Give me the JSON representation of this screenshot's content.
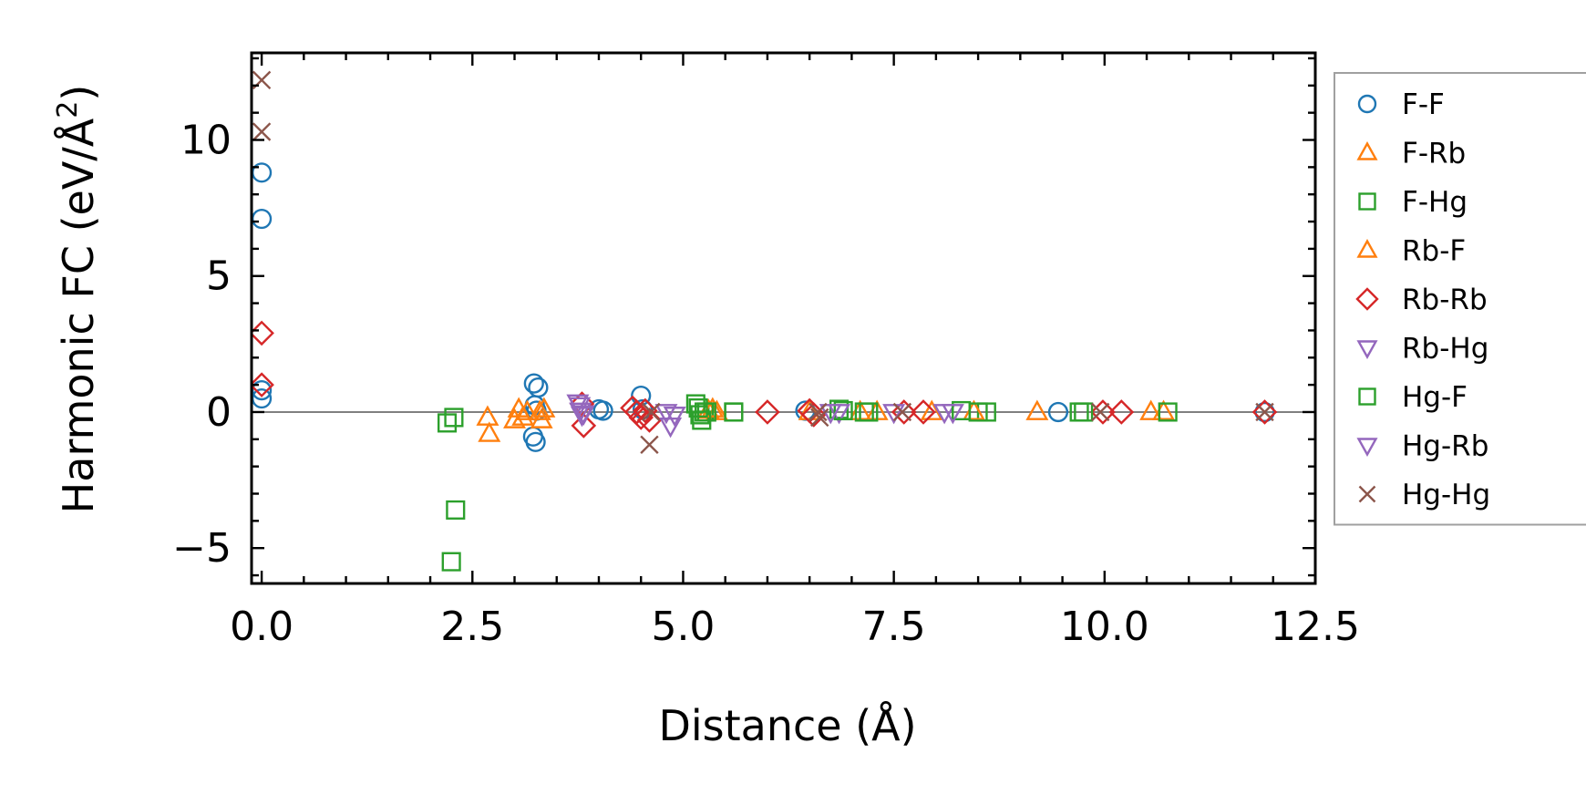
{
  "chart_data": {
    "type": "scatter",
    "title": "",
    "xlabel": "Distance (Å)",
    "ylabel_main": "Harmonic FC (eV/Å",
    "ylabel_sup": "2",
    "ylabel_close": ")",
    "xlim": [
      -0.12,
      12.5
    ],
    "ylim": [
      -6.3,
      13.2
    ],
    "xticks": [
      0,
      2.5,
      5,
      7.5,
      10,
      12.5
    ],
    "xtick_labels": [
      "0.0",
      "2.5",
      "5.0",
      "7.5",
      "10.0",
      "12.5"
    ],
    "yticks": [
      -5,
      0,
      5,
      10
    ],
    "ytick_labels": [
      "−5",
      "0",
      "5",
      "10"
    ],
    "zero_line": true,
    "grid": false,
    "legend_position": "outside-right",
    "series": [
      {
        "name": "F-F",
        "marker": "circle",
        "color": "#1f77b4",
        "points": [
          [
            0,
            8.8
          ],
          [
            0,
            7.1
          ],
          [
            0,
            0.8
          ],
          [
            0,
            0.5
          ],
          [
            3.23,
            1.05
          ],
          [
            3.28,
            0.9
          ],
          [
            3.24,
            0.25
          ],
          [
            3.26,
            0.05
          ],
          [
            3.22,
            -0.9
          ],
          [
            3.25,
            -1.1
          ],
          [
            4.0,
            0.1
          ],
          [
            4.05,
            0.05
          ],
          [
            4.5,
            0.6
          ],
          [
            4.52,
            0.1
          ],
          [
            6.45,
            0.05
          ],
          [
            9.45,
            0.0
          ],
          [
            11.9,
            0.0
          ]
        ]
      },
      {
        "name": "F-Rb",
        "marker": "triangle-up",
        "color": "#ff7f0e",
        "points": [
          [
            2.68,
            -0.2
          ],
          [
            2.7,
            -0.8
          ],
          [
            3.0,
            -0.3
          ],
          [
            3.05,
            0.1
          ],
          [
            3.3,
            0.0
          ],
          [
            3.32,
            -0.3
          ],
          [
            3.35,
            0.1
          ],
          [
            5.3,
            0.05
          ],
          [
            5.4,
            0.0
          ],
          [
            7.1,
            0.0
          ],
          [
            7.3,
            0.0
          ],
          [
            7.95,
            0.0
          ],
          [
            9.2,
            0.0
          ],
          [
            10.55,
            0.0
          ]
        ]
      },
      {
        "name": "F-Hg",
        "marker": "square",
        "color": "#2ca02c",
        "points": [
          [
            2.2,
            -0.4
          ],
          [
            2.28,
            -0.2
          ],
          [
            2.3,
            -3.6
          ],
          [
            2.25,
            -5.5
          ],
          [
            5.15,
            0.3
          ],
          [
            5.2,
            -0.1
          ],
          [
            5.25,
            0.0
          ],
          [
            5.6,
            0.0
          ],
          [
            6.85,
            0.1
          ],
          [
            7.15,
            0.0
          ],
          [
            8.6,
            0.0
          ],
          [
            9.7,
            0.0
          ]
        ]
      },
      {
        "name": "Rb-F",
        "marker": "triangle-up",
        "color": "#ff7f0e",
        "points": [
          [
            3.1,
            -0.2
          ],
          [
            3.15,
            0.0
          ],
          [
            5.35,
            0.1
          ],
          [
            6.5,
            0.0
          ],
          [
            8.45,
            0.0
          ],
          [
            10.7,
            0.0
          ]
        ]
      },
      {
        "name": "Rb-Rb",
        "marker": "diamond",
        "color": "#d62728",
        "points": [
          [
            0,
            2.9
          ],
          [
            0,
            1.0
          ],
          [
            3.8,
            0.3
          ],
          [
            3.82,
            -0.5
          ],
          [
            4.4,
            0.15
          ],
          [
            4.45,
            0.0
          ],
          [
            4.5,
            -0.2
          ],
          [
            4.55,
            0.05
          ],
          [
            4.6,
            -0.3
          ],
          [
            6.0,
            0.0
          ],
          [
            6.5,
            0.05
          ],
          [
            6.55,
            -0.1
          ],
          [
            7.62,
            0.0
          ],
          [
            7.85,
            0.0
          ],
          [
            9.98,
            0.0
          ],
          [
            10.2,
            0.0
          ],
          [
            11.9,
            0.0
          ]
        ]
      },
      {
        "name": "Rb-Hg",
        "marker": "triangle-down",
        "color": "#9467bd",
        "points": [
          [
            3.75,
            0.35
          ],
          [
            3.78,
            0.05
          ],
          [
            3.8,
            -0.1
          ],
          [
            4.8,
            0.0
          ],
          [
            4.85,
            -0.5
          ],
          [
            6.85,
            0.0
          ],
          [
            8.1,
            0.0
          ]
        ]
      },
      {
        "name": "Hg-F",
        "marker": "square",
        "color": "#2ca02c",
        "points": [
          [
            5.18,
            0.15
          ],
          [
            5.22,
            -0.3
          ],
          [
            5.28,
            0.0
          ],
          [
            5.6,
            0.0
          ],
          [
            6.9,
            0.05
          ],
          [
            7.2,
            0.0
          ],
          [
            8.3,
            0.05
          ],
          [
            8.5,
            0.0
          ],
          [
            9.75,
            0.0
          ],
          [
            10.75,
            0.0
          ]
        ]
      },
      {
        "name": "Hg-Rb",
        "marker": "triangle-down",
        "color": "#9467bd",
        "points": [
          [
            3.77,
            0.25
          ],
          [
            3.82,
            -0.05
          ],
          [
            4.9,
            -0.1
          ],
          [
            6.75,
            0.0
          ],
          [
            7.5,
            0.0
          ],
          [
            8.2,
            0.0
          ]
        ]
      },
      {
        "name": "Hg-Hg",
        "marker": "x",
        "color": "#8c564b",
        "points": [
          [
            0,
            12.2
          ],
          [
            0,
            10.3
          ],
          [
            4.6,
            -1.2
          ],
          [
            4.62,
            0.0
          ],
          [
            6.6,
            0.0
          ],
          [
            6.62,
            -0.2
          ],
          [
            7.6,
            0.0
          ],
          [
            9.95,
            0.0
          ],
          [
            11.9,
            0.0
          ]
        ]
      }
    ]
  }
}
